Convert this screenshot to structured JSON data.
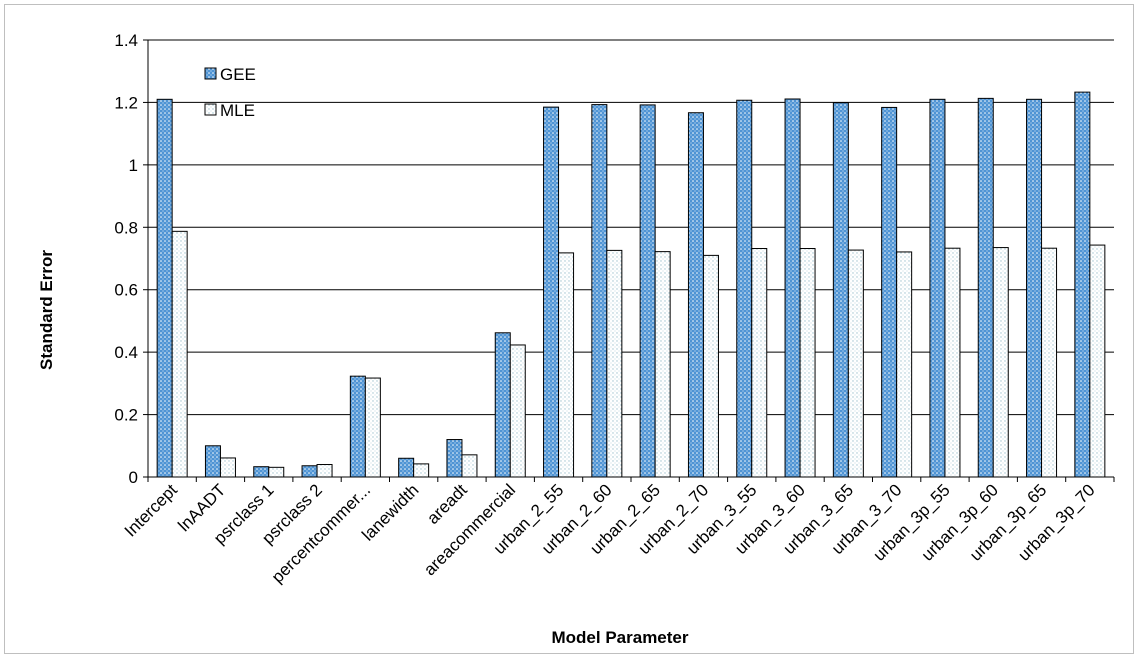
{
  "chart_data": {
    "type": "bar",
    "title": "",
    "xlabel": "Model Parameter",
    "ylabel": "Standard Error",
    "ylim": [
      0,
      1.4
    ],
    "yticks": [
      0,
      0.2,
      0.4,
      0.6,
      0.8,
      1,
      1.2,
      1.4
    ],
    "ytick_labels": [
      "0",
      "0.2",
      "0.4",
      "0.6",
      "0.8",
      "1",
      "1.2",
      "1.4"
    ],
    "grid": true,
    "legend_position": "top-left",
    "categories": [
      "Intercept",
      "lnAADT",
      "psrclass 1",
      "psrclass 2",
      "percentcommer...",
      "lanewidth",
      "areadt",
      "areacommercial",
      "urban_2_55",
      "urban_2_60",
      "urban_2_65",
      "urban_2_70",
      "urban_3_55",
      "urban_3_60",
      "urban_3_65",
      "urban_3_70",
      "urban_3p_55",
      "urban_3p_60",
      "urban_3p_65",
      "urban_3p_70"
    ],
    "series": [
      {
        "name": "GEE",
        "color": "#5b9bd5",
        "pattern": "dotted-blue",
        "values": [
          1.21,
          0.1,
          0.033,
          0.036,
          0.323,
          0.06,
          0.12,
          0.462,
          1.185,
          1.193,
          1.192,
          1.167,
          1.207,
          1.211,
          1.199,
          1.184,
          1.21,
          1.213,
          1.21,
          1.233
        ]
      },
      {
        "name": "MLE",
        "color": "#dceaf0",
        "pattern": "dotted-light",
        "values": [
          0.787,
          0.061,
          0.031,
          0.04,
          0.317,
          0.042,
          0.071,
          0.423,
          0.718,
          0.726,
          0.722,
          0.71,
          0.732,
          0.732,
          0.727,
          0.721,
          0.733,
          0.735,
          0.733,
          0.743
        ]
      }
    ]
  }
}
